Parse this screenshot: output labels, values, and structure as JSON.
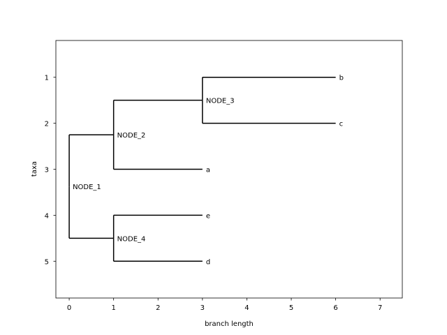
{
  "chart_data": {
    "type": "phylogenetic-tree",
    "xlabel": "branch length",
    "ylabel": "taxa",
    "xlim": [
      -0.3,
      7.5
    ],
    "ylim": [
      5.8,
      0.2
    ],
    "x_ticks": [
      0,
      1,
      2,
      3,
      4,
      5,
      6,
      7
    ],
    "y_ticks": [
      1,
      2,
      3,
      4,
      5
    ],
    "grid": false,
    "legend": "none",
    "nodes": [
      {
        "name": "NODE_1",
        "parent": null,
        "x": 0,
        "y": 3.375,
        "label_y": 3.375
      },
      {
        "name": "NODE_2",
        "parent": "NODE_1",
        "x": 1,
        "y": 2.25
      },
      {
        "name": "NODE_3",
        "parent": "NODE_2",
        "x": 3,
        "y": 1.5
      },
      {
        "name": "b",
        "parent": "NODE_3",
        "x": 6,
        "y": 1
      },
      {
        "name": "c",
        "parent": "NODE_3",
        "x": 6,
        "y": 2
      },
      {
        "name": "a",
        "parent": "NODE_2",
        "x": 3,
        "y": 3
      },
      {
        "name": "NODE_4",
        "parent": "NODE_1",
        "x": 1,
        "y": 4.5
      },
      {
        "name": "e",
        "parent": "NODE_4",
        "x": 3,
        "y": 4
      },
      {
        "name": "d",
        "parent": "NODE_4",
        "x": 3,
        "y": 5
      }
    ]
  }
}
